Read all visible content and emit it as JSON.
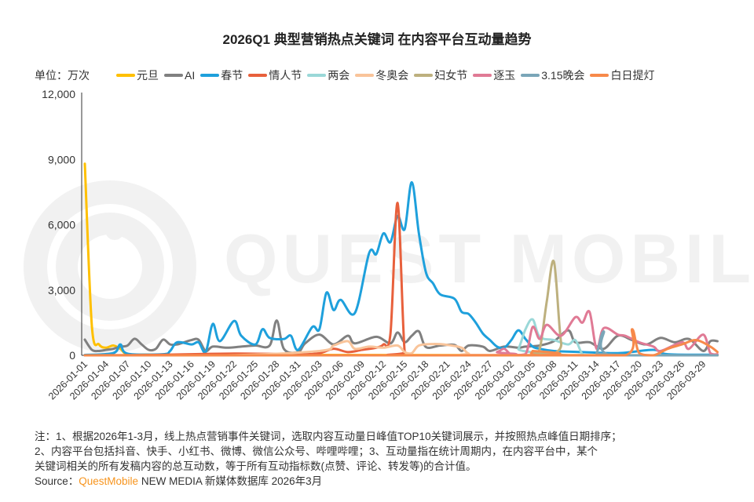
{
  "chart_data": {
    "type": "line",
    "title": "2026Q1 典型营销热点关键词 在内容平台互动量趋势",
    "unit_label": "单位：万次",
    "ylim": [
      0,
      12000
    ],
    "yticks": [
      "0",
      "3,000",
      "6,000",
      "9,000",
      "12,000"
    ],
    "ytick_values": [
      0,
      3000,
      6000,
      9000,
      12000
    ],
    "x_start": "2026-01-01",
    "x_end": "2026-03-31",
    "xticks": [
      "2026-01-01",
      "2026-01-04",
      "2026-01-07",
      "2026-01-10",
      "2026-01-13",
      "2026-01-16",
      "2026-01-19",
      "2026-01-22",
      "2026-01-25",
      "2026-01-28",
      "2026-01-31",
      "2026-02-03",
      "2026-02-06",
      "2026-02-09",
      "2026-02-12",
      "2026-02-15",
      "2026-02-18",
      "2026-02-21",
      "2026-02-24",
      "2026-02-27",
      "2026-03-02",
      "2026-03-05",
      "2026-03-08",
      "2026-03-11",
      "2026-03-14",
      "2026-03-17",
      "2026-03-20",
      "2026-03-23",
      "2026-03-26",
      "2026-03-29"
    ],
    "grid": false,
    "legend_placement": "top",
    "series": [
      {
        "name": "元旦",
        "color": "#FFC000",
        "points": [
          [
            "2026-01-01",
            8800
          ],
          [
            "2026-01-02",
            1300
          ],
          [
            "2026-01-03",
            500
          ],
          [
            "2026-01-04",
            350
          ],
          [
            "2026-01-05",
            450
          ],
          [
            "2026-01-06",
            300
          ],
          [
            "2026-01-07",
            50
          ],
          [
            "2026-01-10",
            30
          ],
          [
            "2026-01-20",
            20
          ],
          [
            "2026-03-31",
            0
          ]
        ]
      },
      {
        "name": "AI",
        "color": "#808080",
        "points": [
          [
            "2026-01-01",
            720
          ],
          [
            "2026-01-02",
            250
          ],
          [
            "2026-01-03",
            200
          ],
          [
            "2026-01-04",
            250
          ],
          [
            "2026-01-05",
            300
          ],
          [
            "2026-01-06",
            400
          ],
          [
            "2026-01-07",
            450
          ],
          [
            "2026-01-08",
            760
          ],
          [
            "2026-01-09",
            500
          ],
          [
            "2026-01-10",
            250
          ],
          [
            "2026-01-11",
            300
          ],
          [
            "2026-01-12",
            720
          ],
          [
            "2026-01-13",
            500
          ],
          [
            "2026-01-14",
            500
          ],
          [
            "2026-01-15",
            600
          ],
          [
            "2026-01-16",
            700
          ],
          [
            "2026-01-17",
            720
          ],
          [
            "2026-01-18",
            200
          ],
          [
            "2026-01-19",
            400
          ],
          [
            "2026-01-21",
            350
          ],
          [
            "2026-01-23",
            400
          ],
          [
            "2026-01-25",
            450
          ],
          [
            "2026-01-27",
            450
          ],
          [
            "2026-01-28",
            1600
          ],
          [
            "2026-01-29",
            300
          ],
          [
            "2026-01-31",
            150
          ],
          [
            "2026-02-01",
            550
          ],
          [
            "2026-02-03",
            950
          ],
          [
            "2026-02-05",
            500
          ],
          [
            "2026-02-07",
            900
          ],
          [
            "2026-02-08",
            550
          ],
          [
            "2026-02-11",
            850
          ],
          [
            "2026-02-13",
            550
          ],
          [
            "2026-02-14",
            1050
          ],
          [
            "2026-02-15",
            600
          ],
          [
            "2026-02-16",
            900
          ],
          [
            "2026-02-17",
            1100
          ],
          [
            "2026-02-18",
            380
          ],
          [
            "2026-02-20",
            450
          ],
          [
            "2026-02-22",
            480
          ],
          [
            "2026-02-23",
            200
          ],
          [
            "2026-02-24",
            450
          ],
          [
            "2026-02-26",
            400
          ],
          [
            "2026-02-27",
            200
          ],
          [
            "2026-03-01",
            400
          ],
          [
            "2026-03-03",
            350
          ],
          [
            "2026-03-04",
            400
          ],
          [
            "2026-03-06",
            450
          ],
          [
            "2026-03-08",
            650
          ],
          [
            "2026-03-10",
            1150
          ],
          [
            "2026-03-11",
            600
          ],
          [
            "2026-03-13",
            600
          ],
          [
            "2026-03-15",
            300
          ],
          [
            "2026-03-17",
            900
          ],
          [
            "2026-03-19",
            700
          ],
          [
            "2026-03-21",
            500
          ],
          [
            "2026-03-23",
            800
          ],
          [
            "2026-03-25",
            600
          ],
          [
            "2026-03-27",
            750
          ],
          [
            "2026-03-29",
            200
          ],
          [
            "2026-03-30",
            650
          ],
          [
            "2026-03-31",
            650
          ]
        ]
      },
      {
        "name": "春节",
        "color": "#1EA0DC",
        "points": [
          [
            "2026-01-01",
            20
          ],
          [
            "2026-01-05",
            100
          ],
          [
            "2026-01-06",
            500
          ],
          [
            "2026-01-07",
            80
          ],
          [
            "2026-01-12",
            50
          ],
          [
            "2026-01-13",
            200
          ],
          [
            "2026-01-14",
            600
          ],
          [
            "2026-01-16",
            500
          ],
          [
            "2026-01-17",
            600
          ],
          [
            "2026-01-18",
            150
          ],
          [
            "2026-01-19",
            1440
          ],
          [
            "2026-01-20",
            650
          ],
          [
            "2026-01-22",
            1580
          ],
          [
            "2026-01-23",
            900
          ],
          [
            "2026-01-25",
            500
          ],
          [
            "2026-01-26",
            1200
          ],
          [
            "2026-01-27",
            800
          ],
          [
            "2026-01-29",
            750
          ],
          [
            "2026-01-30",
            900
          ],
          [
            "2026-01-31",
            250
          ],
          [
            "2026-02-02",
            1300
          ],
          [
            "2026-02-03",
            1200
          ],
          [
            "2026-02-04",
            2880
          ],
          [
            "2026-02-05",
            2080
          ],
          [
            "2026-02-06",
            2550
          ],
          [
            "2026-02-08",
            1950
          ],
          [
            "2026-02-10",
            4700
          ],
          [
            "2026-02-11",
            4650
          ],
          [
            "2026-02-12",
            5600
          ],
          [
            "2026-02-13",
            5200
          ],
          [
            "2026-02-14",
            6400
          ],
          [
            "2026-02-15",
            5800
          ],
          [
            "2026-02-16",
            7950
          ],
          [
            "2026-02-17",
            5600
          ],
          [
            "2026-02-18",
            3800
          ],
          [
            "2026-02-19",
            3300
          ],
          [
            "2026-02-20",
            2800
          ],
          [
            "2026-02-22",
            2600
          ],
          [
            "2026-02-23",
            2000
          ],
          [
            "2026-02-24",
            1900
          ],
          [
            "2026-02-25",
            1500
          ],
          [
            "2026-02-26",
            1000
          ],
          [
            "2026-02-27",
            700
          ],
          [
            "2026-02-28",
            400
          ],
          [
            "2026-03-01",
            350
          ],
          [
            "2026-03-02",
            700
          ],
          [
            "2026-03-03",
            1150
          ],
          [
            "2026-03-04",
            750
          ],
          [
            "2026-03-05",
            400
          ],
          [
            "2026-03-06",
            300
          ],
          [
            "2026-03-08",
            200
          ],
          [
            "2026-03-12",
            150
          ],
          [
            "2026-03-17",
            100
          ],
          [
            "2026-03-22",
            250
          ],
          [
            "2026-03-24",
            50
          ],
          [
            "2026-03-31",
            30
          ]
        ]
      },
      {
        "name": "情人节",
        "color": "#E8603C",
        "points": [
          [
            "2026-01-01",
            0
          ],
          [
            "2026-01-11",
            20
          ],
          [
            "2026-01-22",
            80
          ],
          [
            "2026-01-31",
            50
          ],
          [
            "2026-02-03",
            100
          ],
          [
            "2026-02-05",
            300
          ],
          [
            "2026-02-07",
            150
          ],
          [
            "2026-02-09",
            250
          ],
          [
            "2026-02-11",
            350
          ],
          [
            "2026-02-12",
            500
          ],
          [
            "2026-02-13",
            1000
          ],
          [
            "2026-02-14",
            7000
          ],
          [
            "2026-02-15",
            150
          ],
          [
            "2026-02-16",
            0
          ],
          [
            "2026-03-31",
            0
          ]
        ]
      },
      {
        "name": "两会",
        "color": "#9AD8D8",
        "points": [
          [
            "2026-01-01",
            0
          ],
          [
            "2026-03-02",
            0
          ],
          [
            "2026-03-03",
            300
          ],
          [
            "2026-03-04",
            1200
          ],
          [
            "2026-03-05",
            1650
          ],
          [
            "2026-03-06",
            850
          ],
          [
            "2026-03-08",
            700
          ],
          [
            "2026-03-10",
            500
          ],
          [
            "2026-03-11",
            700
          ],
          [
            "2026-03-12",
            50
          ],
          [
            "2026-03-13",
            0
          ],
          [
            "2026-03-31",
            0
          ]
        ]
      },
      {
        "name": "冬奥会",
        "color": "#F9C49A",
        "points": [
          [
            "2026-01-01",
            0
          ],
          [
            "2026-01-21",
            0
          ],
          [
            "2026-02-03",
            200
          ],
          [
            "2026-02-05",
            450
          ],
          [
            "2026-02-07",
            650
          ],
          [
            "2026-02-08",
            300
          ],
          [
            "2026-02-10",
            400
          ],
          [
            "2026-02-12",
            350
          ],
          [
            "2026-02-14",
            450
          ],
          [
            "2026-02-15",
            150
          ],
          [
            "2026-02-16",
            100
          ],
          [
            "2026-02-17",
            450
          ],
          [
            "2026-02-19",
            520
          ],
          [
            "2026-02-21",
            480
          ],
          [
            "2026-02-23",
            350
          ],
          [
            "2026-02-24",
            80
          ],
          [
            "2026-02-26",
            20
          ],
          [
            "2026-03-31",
            0
          ]
        ]
      },
      {
        "name": "妇女节",
        "color": "#BDB07E",
        "points": [
          [
            "2026-01-01",
            0
          ],
          [
            "2026-03-04",
            0
          ],
          [
            "2026-03-05",
            100
          ],
          [
            "2026-03-06",
            300
          ],
          [
            "2026-03-07",
            2500
          ],
          [
            "2026-03-08",
            4300
          ],
          [
            "2026-03-09",
            600
          ],
          [
            "2026-03-10",
            0
          ],
          [
            "2026-03-31",
            0
          ]
        ]
      },
      {
        "name": "逐玉",
        "color": "#E07A95",
        "points": [
          [
            "2026-01-01",
            0
          ],
          [
            "2026-02-26",
            0
          ],
          [
            "2026-02-28",
            150
          ],
          [
            "2026-03-01",
            300
          ],
          [
            "2026-03-02",
            50
          ],
          [
            "2026-03-04",
            50
          ],
          [
            "2026-03-05",
            1300
          ],
          [
            "2026-03-06",
            750
          ],
          [
            "2026-03-07",
            1400
          ],
          [
            "2026-03-09",
            900
          ],
          [
            "2026-03-11",
            1750
          ],
          [
            "2026-03-12",
            1500
          ],
          [
            "2026-03-13",
            2000
          ],
          [
            "2026-03-14",
            300
          ],
          [
            "2026-03-15",
            1250
          ],
          [
            "2026-03-17",
            950
          ],
          [
            "2026-03-18",
            900
          ],
          [
            "2026-03-20",
            600
          ],
          [
            "2026-03-22",
            400
          ],
          [
            "2026-03-23",
            200
          ],
          [
            "2026-03-26",
            600
          ],
          [
            "2026-03-27",
            300
          ],
          [
            "2026-03-29",
            950
          ],
          [
            "2026-03-30",
            100
          ],
          [
            "2026-03-31",
            50
          ]
        ]
      },
      {
        "name": "3.15晚会",
        "color": "#7AA6B8",
        "points": [
          [
            "2026-01-01",
            0
          ],
          [
            "2026-03-13",
            0
          ],
          [
            "2026-03-14",
            100
          ],
          [
            "2026-03-15",
            1100
          ],
          [
            "2026-03-16",
            0
          ],
          [
            "2026-03-31",
            0
          ]
        ]
      },
      {
        "name": "白日提灯",
        "color": "#F7894A",
        "points": [
          [
            "2026-01-01",
            0
          ],
          [
            "2026-03-04",
            0
          ],
          [
            "2026-03-05",
            200
          ],
          [
            "2026-03-06",
            0
          ],
          [
            "2026-03-18",
            0
          ],
          [
            "2026-03-19",
            1200
          ],
          [
            "2026-03-20",
            100
          ],
          [
            "2026-03-22",
            0
          ],
          [
            "2026-03-24",
            300
          ],
          [
            "2026-03-26",
            500
          ],
          [
            "2026-03-28",
            700
          ],
          [
            "2026-03-30",
            400
          ],
          [
            "2026-03-31",
            150
          ]
        ]
      }
    ]
  },
  "notes": {
    "line1": "注：1、根据2026年1-3月，线上热点营销事件关键词，选取内容互动量日峰值TOP10关键词展示，并按照热点峰值日期排序；",
    "line2": "2、内容平台包括抖音、快手、小红书、微博、微信公众号、哔哩哔哩；3、互动量指在统计周期内，在内容平台中，某个",
    "line3": "关键词相关的所有发稿内容的总互动数，等于所有互动指标数(点赞、评论、转发等)的合计值。",
    "source_prefix": "Source：",
    "source_brand": "QuestMobile",
    "source_rest": " NEW MEDIA 新媒体数据库 2026年3月"
  },
  "watermark": "QUEST MOBILE"
}
